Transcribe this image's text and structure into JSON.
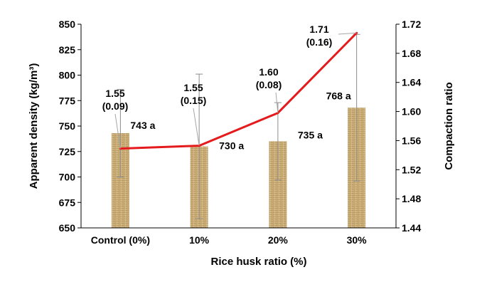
{
  "chart_data": {
    "type": "bar",
    "categories": [
      "Control (0%)",
      "10%",
      "20%",
      "30%"
    ],
    "xlabel": "Rice husk ratio (%)",
    "ylabel": "Apparent density (kg/m³)",
    "y2label": "Compaction ratio",
    "ylim": [
      650,
      850
    ],
    "yticks": [
      650,
      675,
      700,
      725,
      750,
      775,
      800,
      825,
      850
    ],
    "y2lim": [
      1.44,
      1.72
    ],
    "y2ticks": [
      "1.44",
      "1.48",
      "1.52",
      "1.56",
      "1.60",
      "1.64",
      "1.68",
      "1.72"
    ],
    "grid": false,
    "series": [
      {
        "kind": "bar",
        "axis": "left",
        "values": [
          743,
          730,
          735,
          768
        ],
        "error": [
          43,
          71,
          38,
          72
        ],
        "labels": [
          "743 a",
          "730 a",
          "735 a",
          "768 a"
        ]
      },
      {
        "kind": "line",
        "axis": "right",
        "values": [
          1.549,
          1.553,
          1.598,
          1.708
        ],
        "labels": [
          "1.55",
          "1.55",
          "1.60",
          "1.71"
        ],
        "sd_labels": [
          "(0.09)",
          "(0.15)",
          "(0.08)",
          "(0.16)"
        ]
      }
    ],
    "colors": {
      "bar": "#c8a96e",
      "bar_texture": "#8c6b3a",
      "line": "#e41a1c",
      "error_bar": "#8c8c8c"
    }
  }
}
